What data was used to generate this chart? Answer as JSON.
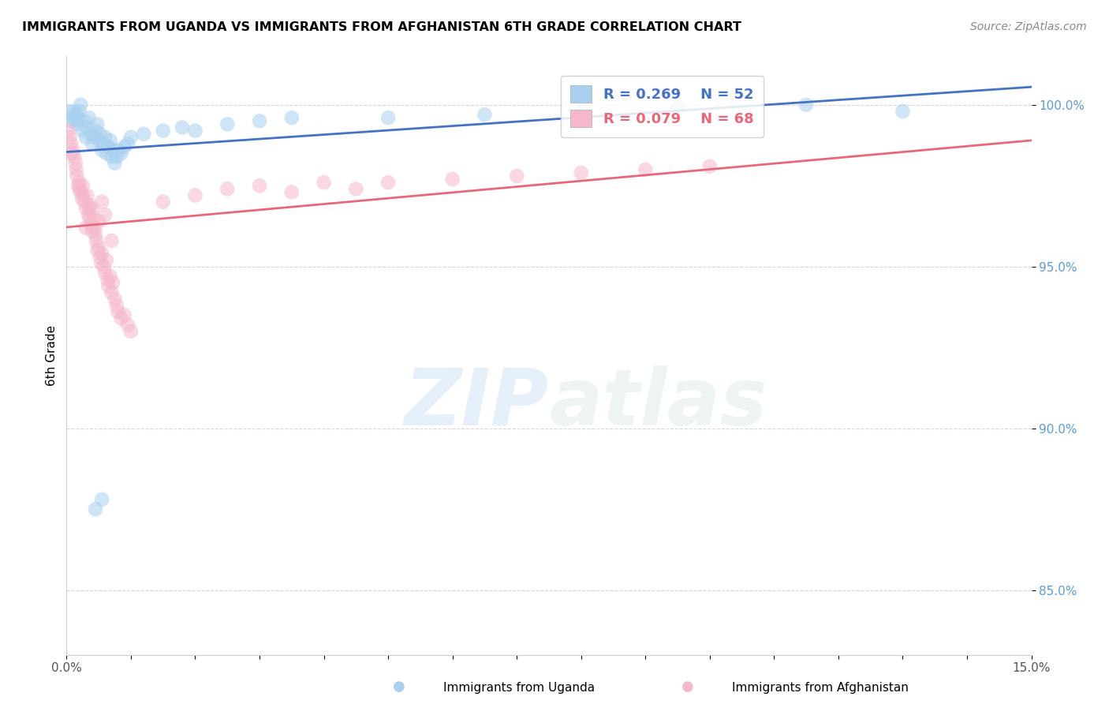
{
  "title": "IMMIGRANTS FROM UGANDA VS IMMIGRANTS FROM AFGHANISTAN 6TH GRADE CORRELATION CHART",
  "source": "Source: ZipAtlas.com",
  "ylabel": "6th Grade",
  "xlim": [
    0.0,
    15.0
  ],
  "ylim": [
    83.0,
    101.5
  ],
  "y_ticks": [
    85.0,
    90.0,
    95.0,
    100.0
  ],
  "legend_r1": "0.269",
  "legend_n1": "52",
  "legend_r2": "0.079",
  "legend_n2": "68",
  "color_uganda": "#a8d0f0",
  "color_afghanistan": "#f5b8cb",
  "color_line_uganda": "#4472c4",
  "color_line_afghanistan": "#e8687a",
  "uganda_x": [
    0.05,
    0.08,
    0.1,
    0.12,
    0.14,
    0.15,
    0.16,
    0.18,
    0.2,
    0.22,
    0.25,
    0.28,
    0.3,
    0.32,
    0.35,
    0.38,
    0.4,
    0.42,
    0.45,
    0.48,
    0.5,
    0.52,
    0.55,
    0.58,
    0.6,
    0.62,
    0.65,
    0.68,
    0.7,
    0.72,
    0.75,
    0.78,
    0.8,
    0.85,
    0.9,
    0.95,
    1.0,
    1.2,
    1.5,
    1.8,
    2.0,
    2.5,
    3.0,
    3.5,
    5.0,
    6.5,
    8.0,
    9.5,
    11.5,
    13.0,
    0.45,
    0.55
  ],
  "uganda_y": [
    99.8,
    99.5,
    99.6,
    99.8,
    99.5,
    99.7,
    99.4,
    99.6,
    99.8,
    100.0,
    99.2,
    99.5,
    99.0,
    99.3,
    99.6,
    99.1,
    98.8,
    99.0,
    99.2,
    99.4,
    98.9,
    99.1,
    98.6,
    98.8,
    99.0,
    98.5,
    98.7,
    98.9,
    98.4,
    98.6,
    98.2,
    98.4,
    98.6,
    98.5,
    98.7,
    98.8,
    99.0,
    99.1,
    99.2,
    99.3,
    99.2,
    99.4,
    99.5,
    99.6,
    99.6,
    99.7,
    99.8,
    99.9,
    100.0,
    99.8,
    87.5,
    87.8
  ],
  "afghanistan_x": [
    0.03,
    0.05,
    0.07,
    0.08,
    0.1,
    0.12,
    0.14,
    0.15,
    0.16,
    0.18,
    0.2,
    0.22,
    0.24,
    0.25,
    0.26,
    0.28,
    0.3,
    0.32,
    0.34,
    0.35,
    0.36,
    0.38,
    0.4,
    0.42,
    0.44,
    0.45,
    0.46,
    0.48,
    0.5,
    0.52,
    0.54,
    0.55,
    0.58,
    0.6,
    0.62,
    0.64,
    0.65,
    0.68,
    0.7,
    0.72,
    0.75,
    0.78,
    0.8,
    0.85,
    0.9,
    0.95,
    1.0,
    1.5,
    2.0,
    2.5,
    3.0,
    3.5,
    4.0,
    4.5,
    5.0,
    6.0,
    7.0,
    8.0,
    9.0,
    10.0,
    0.3,
    0.4,
    0.5,
    0.6,
    0.2,
    0.7,
    0.55,
    0.35
  ],
  "afghanistan_y": [
    99.2,
    99.0,
    98.8,
    98.5,
    98.6,
    98.4,
    98.2,
    98.0,
    97.8,
    97.5,
    97.6,
    97.3,
    97.1,
    97.5,
    97.2,
    97.0,
    96.8,
    97.2,
    96.6,
    96.8,
    96.5,
    96.3,
    96.1,
    96.5,
    96.2,
    96.0,
    95.8,
    95.5,
    95.6,
    95.3,
    95.1,
    95.4,
    95.0,
    94.8,
    95.2,
    94.6,
    94.4,
    94.7,
    94.2,
    94.5,
    94.0,
    93.8,
    93.6,
    93.4,
    93.5,
    93.2,
    93.0,
    97.0,
    97.2,
    97.4,
    97.5,
    97.3,
    97.6,
    97.4,
    97.6,
    97.7,
    97.8,
    97.9,
    98.0,
    98.1,
    96.2,
    96.8,
    96.4,
    96.6,
    97.4,
    95.8,
    97.0,
    96.9
  ]
}
